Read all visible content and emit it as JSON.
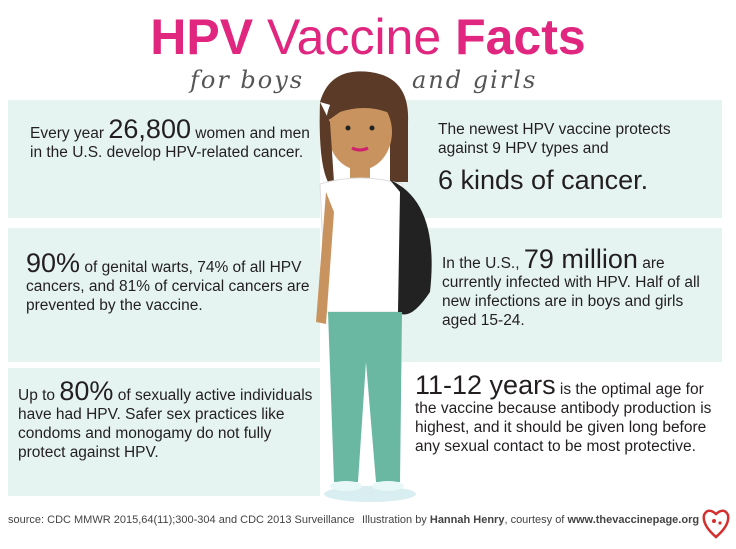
{
  "header": {
    "title": {
      "first": "HPV",
      "middle": "Vaccine",
      "last": "Facts"
    },
    "subtitle": {
      "left": "for boys",
      "right": "and girls"
    }
  },
  "facts": [
    {
      "before": "Every year ",
      "highlight": "26,800",
      "after": " women and men in the U.S. develop HPV-related cancer."
    },
    {
      "before": "The newest HPV vaccine protects against 9 HPV types and",
      "highlight": "6 kinds of cancer."
    },
    {
      "highlight": "90%",
      "after": " of genital warts, 74% of all HPV  cancers,  and 81% of cervical cancers are prevented by the vaccine."
    },
    {
      "before": "In the U.S., ",
      "highlight": "79 million",
      "after": " are currently infected with HPV. Half of all new infections are in boys and girls aged 15-24."
    },
    {
      "before": "Up to ",
      "highlight": "80%",
      "after": " of sexually active individuals have had HPV. Safer sex practices like condoms and monogamy do not fully protect against HPV."
    },
    {
      "highlight": "11-12 years",
      "after": " is the optimal age for the vaccine because antibody production is highest, and it should be given long before any sexual contact to be most protective."
    }
  ],
  "footer": {
    "source": "source: CDC MMWR 2015,64(11);300-304 and CDC 2013 Surveillance",
    "credit_prefix": "Illustration by ",
    "illustrator": "Hannah Henry",
    "credit_middle": ", courtesy of ",
    "website": "www.thevaccinepage.org"
  }
}
